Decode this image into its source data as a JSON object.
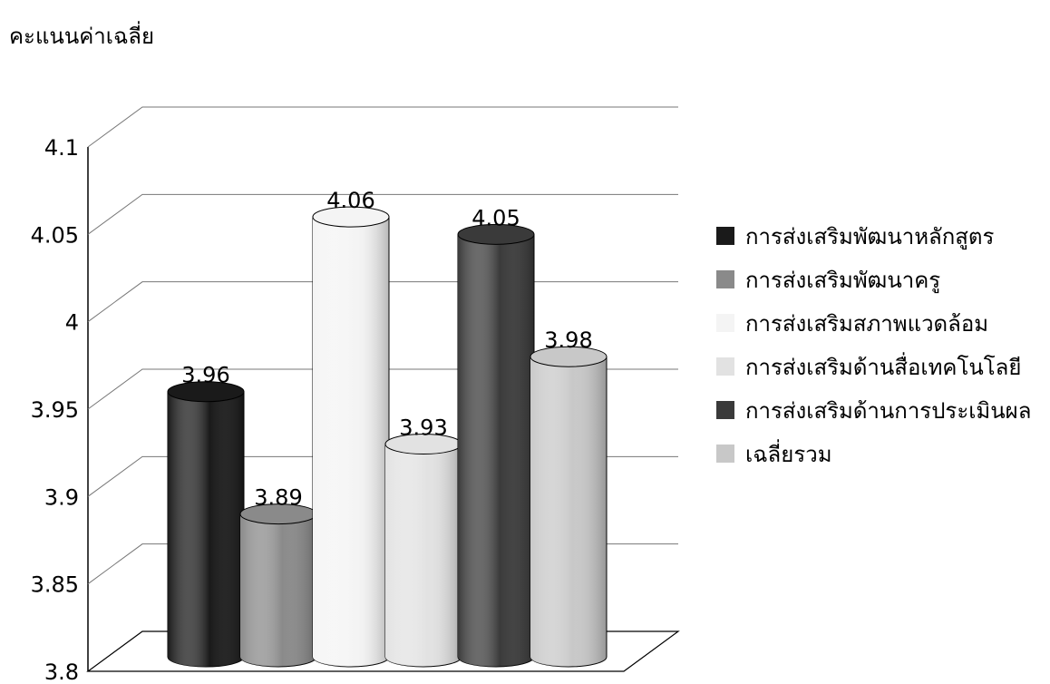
{
  "chart_data": {
    "type": "bar",
    "style": "3d-cylinder",
    "ylabel": "คะแนนค่าเฉลี่ย",
    "ylim": [
      3.8,
      4.1
    ],
    "yticks": [
      3.8,
      3.85,
      3.9,
      3.95,
      4,
      4.05,
      4.1
    ],
    "ytick_labels": [
      "3.8",
      "3.85",
      "3.9",
      "3.95",
      "4",
      "4.05",
      "4.1"
    ],
    "grid": true,
    "legend": "right",
    "series": [
      {
        "name": "การส่งเสริมพัฒนาหลักสูตร",
        "value": 3.96,
        "label": "3.96",
        "color": "#1a1a1a"
      },
      {
        "name": "การส่งเสริมพัฒนาครู",
        "value": 3.89,
        "label": "3.89",
        "color": "#8a8a8a"
      },
      {
        "name": "การส่งเสริมสภาพแวดล้อม",
        "value": 4.06,
        "label": "4.06",
        "color": "#f4f4f4"
      },
      {
        "name": "การส่งเสริมด้านสื่อเทคโนโลยี",
        "value": 3.93,
        "label": "3.93",
        "color": "#e2e2e2"
      },
      {
        "name": "การส่งเสริมด้านการประเมินผล",
        "value": 4.05,
        "label": "4.05",
        "color": "#3a3a3a"
      },
      {
        "name": "เฉลี่ยรวม",
        "value": 3.98,
        "label": "3.98",
        "color": "#c8c8c8"
      }
    ]
  }
}
